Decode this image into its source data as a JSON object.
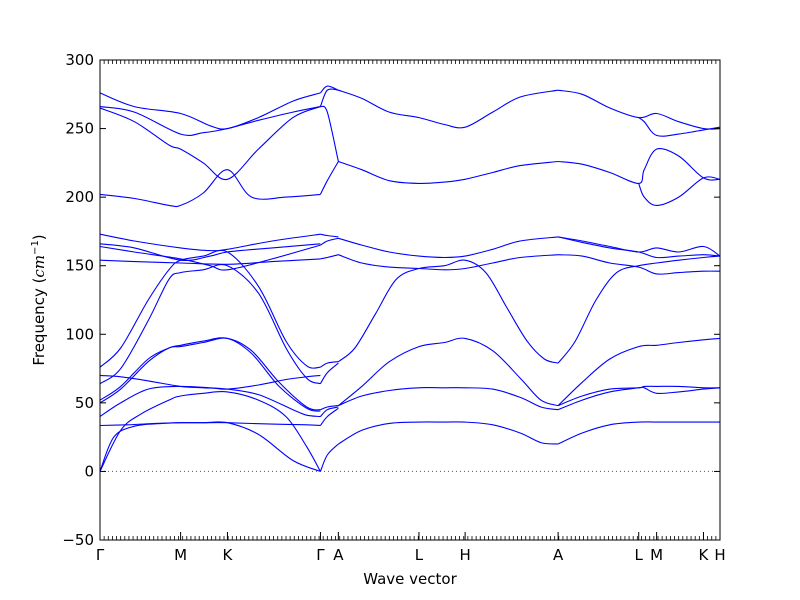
{
  "chart_data": {
    "type": "line",
    "title": "",
    "xlabel": "Wave vector",
    "ylabel_prefix": "Frequency (",
    "ylabel_unit": "cm",
    "ylabel_exp": "−1",
    "ylabel_suffix": ")",
    "ylim": [
      -50,
      300
    ],
    "yticks": [
      -50,
      0,
      50,
      100,
      150,
      200,
      250,
      300
    ],
    "xlim": [
      0,
      9.0
    ],
    "grid": false,
    "legend": "none",
    "line_color": "#0000ff",
    "zero_line_color": "#555555",
    "kpoints": [
      {
        "label": "Γ",
        "x": 0.0
      },
      {
        "label": "M",
        "x": 1.17
      },
      {
        "label": "K",
        "x": 1.85
      },
      {
        "label": "Γ",
        "x": 3.2
      },
      {
        "label": "A",
        "x": 3.46
      },
      {
        "label": "L",
        "x": 4.63
      },
      {
        "label": "H",
        "x": 5.3
      },
      {
        "label": "A",
        "x": 6.65
      },
      {
        "label": "L",
        "x": 7.82
      },
      {
        "label": "M",
        "x": 8.08
      },
      {
        "label": "K",
        "x": 8.76
      },
      {
        "label": "H",
        "x": 9.0
      }
    ],
    "series": [
      {
        "x": [
          0,
          0.2,
          0.5,
          0.9,
          1.17,
          1.5,
          1.85,
          2.5,
          3.0,
          3.2
        ],
        "y": [
          0,
          25,
          33,
          35,
          35.5,
          35.5,
          35.5,
          34.5,
          34,
          33.5
        ]
      },
      {
        "x": [
          0,
          0.3,
          0.6,
          1.0,
          1.17,
          1.5,
          1.85,
          2.3,
          2.7,
          3.0,
          3.2
        ],
        "y": [
          0,
          30,
          42,
          52,
          55,
          57,
          58,
          52,
          40,
          18,
          0
        ]
      },
      {
        "x": [
          0,
          0.4,
          0.8,
          1.17,
          1.5,
          1.85,
          2.3,
          2.8,
          3.2
        ],
        "y": [
          33.5,
          34,
          35,
          35.5,
          35.5,
          35.5,
          27,
          8,
          0
        ]
      },
      {
        "x": [
          0,
          0.3,
          0.7,
          1.17,
          1.6,
          1.85,
          2.3,
          2.7,
          3.0,
          3.2
        ],
        "y": [
          40,
          50,
          60,
          62,
          61,
          60,
          63,
          67,
          69,
          70
        ]
      },
      {
        "x": [
          0,
          0.3,
          0.7,
          1.17,
          1.5,
          1.85,
          2.3,
          2.8,
          3.0,
          3.2
        ],
        "y": [
          70,
          69,
          66,
          62,
          61,
          60,
          56,
          45,
          41,
          40
        ]
      },
      {
        "x": [
          0,
          0.3,
          0.7,
          1.0,
          1.17,
          1.5,
          1.85,
          2.2,
          2.6,
          3.0,
          3.2
        ],
        "y": [
          50,
          60,
          80,
          90,
          91,
          94,
          97,
          88,
          65,
          47,
          45
        ]
      },
      {
        "x": [
          0,
          0.3,
          0.7,
          1.0,
          1.17,
          1.5,
          1.85,
          2.2,
          2.6,
          3.0,
          3.2
        ],
        "y": [
          52,
          62,
          82,
          90,
          92,
          95,
          97,
          86,
          62,
          46,
          44
        ]
      },
      {
        "x": [
          0,
          0.3,
          0.7,
          1.0,
          1.17,
          1.5,
          1.85,
          2.3,
          2.7,
          3.0,
          3.2
        ],
        "y": [
          64,
          75,
          110,
          140,
          145,
          147,
          150,
          130,
          90,
          68,
          64
        ]
      },
      {
        "x": [
          0,
          0.3,
          0.7,
          1.0,
          1.17,
          1.5,
          1.85,
          2.3,
          2.7,
          3.0,
          3.2
        ],
        "y": [
          76,
          90,
          125,
          147,
          154,
          157,
          160,
          135,
          95,
          77,
          76
        ]
      },
      {
        "x": [
          0,
          0.5,
          1.17,
          1.85,
          2.5,
          3.2
        ],
        "y": [
          154,
          153,
          152,
          151,
          153,
          155
        ]
      },
      {
        "x": [
          0,
          0.5,
          1.17,
          1.6,
          1.85,
          2.5,
          3.2
        ],
        "y": [
          164,
          160,
          155,
          150,
          147,
          155,
          165
        ]
      },
      {
        "x": [
          0,
          0.5,
          1.17,
          1.6,
          1.85,
          2.5,
          3.2
        ],
        "y": [
          166,
          163,
          154,
          157,
          160,
          163,
          166
        ]
      },
      {
        "x": [
          0,
          0.5,
          1.17,
          1.6,
          1.85,
          2.5,
          3.2
        ],
        "y": [
          173,
          168,
          163,
          161,
          162,
          168,
          173
        ]
      },
      {
        "x": [
          0,
          0.5,
          1.0,
          1.17,
          1.5,
          1.85,
          2.2,
          2.7,
          3.2
        ],
        "y": [
          202,
          199,
          194,
          194,
          203,
          220,
          200,
          200,
          202
        ]
      },
      {
        "x": [
          0,
          0.5,
          1.0,
          1.17,
          1.5,
          1.85,
          2.3,
          2.8,
          3.2
        ],
        "y": [
          265,
          255,
          238,
          235,
          225,
          213,
          235,
          258,
          266
        ]
      },
      {
        "x": [
          0,
          0.5,
          1.17,
          1.5,
          1.85,
          2.3,
          2.8,
          3.2
        ],
        "y": [
          266,
          262,
          246,
          247,
          250,
          256,
          262,
          266
        ]
      },
      {
        "x": [
          0,
          0.5,
          1.17,
          1.6,
          1.85,
          2.3,
          2.8,
          3.2
        ],
        "y": [
          276,
          266,
          261,
          252,
          250,
          258,
          270,
          276
        ]
      },
      {
        "x": [
          3.2,
          3.3,
          3.46
        ],
        "y": [
          0,
          12,
          20
        ]
      },
      {
        "x": [
          3.2,
          3.3,
          3.46
        ],
        "y": [
          33.5,
          40,
          46
        ]
      },
      {
        "x": [
          3.2,
          3.3,
          3.46
        ],
        "y": [
          40,
          45,
          47
        ]
      },
      {
        "x": [
          3.2,
          3.3,
          3.46
        ],
        "y": [
          45,
          47,
          48
        ]
      },
      {
        "x": [
          3.2,
          3.3,
          3.46
        ],
        "y": [
          64,
          72,
          79
        ]
      },
      {
        "x": [
          3.2,
          3.3,
          3.46
        ],
        "y": [
          76,
          79,
          80
        ]
      },
      {
        "x": [
          3.2,
          3.3,
          3.46
        ],
        "y": [
          155,
          156,
          158
        ]
      },
      {
        "x": [
          3.2,
          3.3,
          3.46
        ],
        "y": [
          165,
          168,
          170
        ]
      },
      {
        "x": [
          3.2,
          3.3,
          3.46
        ],
        "y": [
          173,
          172,
          171
        ]
      },
      {
        "x": [
          3.2,
          3.3,
          3.46
        ],
        "y": [
          202,
          212,
          226
        ]
      },
      {
        "x": [
          3.2,
          3.3,
          3.46
        ],
        "y": [
          266,
          262,
          226
        ]
      },
      {
        "x": [
          3.2,
          3.3,
          3.46
        ],
        "y": [
          266,
          278,
          278
        ]
      },
      {
        "x": [
          3.2,
          3.3,
          3.46
        ],
        "y": [
          276,
          281,
          278
        ]
      },
      {
        "x": [
          3.46,
          3.8,
          4.2,
          4.63,
          5.0,
          5.3,
          5.7,
          6.1,
          6.4,
          6.65
        ],
        "y": [
          20,
          30,
          35,
          36,
          36,
          36,
          34,
          28,
          21,
          20
        ]
      },
      {
        "x": [
          3.46,
          3.8,
          4.2,
          4.63,
          5.0,
          5.3,
          5.7,
          6.1,
          6.4,
          6.65
        ],
        "y": [
          48,
          55,
          59,
          61,
          61,
          61,
          60,
          54,
          47,
          45
        ]
      },
      {
        "x": [
          3.46,
          3.8,
          4.2,
          4.63,
          5.0,
          5.3,
          5.7,
          6.1,
          6.4,
          6.65
        ],
        "y": [
          48,
          62,
          80,
          91,
          94,
          97,
          88,
          68,
          52,
          48
        ]
      },
      {
        "x": [
          3.46,
          3.7,
          4.0,
          4.3,
          4.63,
          5.0,
          5.3,
          5.6,
          5.9,
          6.2,
          6.45,
          6.65
        ],
        "y": [
          80,
          90,
          115,
          140,
          148,
          150,
          154,
          145,
          120,
          95,
          82,
          79
        ]
      },
      {
        "x": [
          3.46,
          3.8,
          4.2,
          4.63,
          5.0,
          5.3,
          5.7,
          6.1,
          6.65
        ],
        "y": [
          158,
          152,
          149,
          148,
          147,
          148,
          152,
          156,
          158
        ]
      },
      {
        "x": [
          3.46,
          3.8,
          4.2,
          4.63,
          5.0,
          5.3,
          5.7,
          6.1,
          6.65
        ],
        "y": [
          170,
          165,
          160,
          157,
          156,
          157,
          162,
          168,
          171
        ]
      },
      {
        "x": [
          3.46,
          3.8,
          4.2,
          4.63,
          5.0,
          5.3,
          5.7,
          6.1,
          6.65
        ],
        "y": [
          226,
          220,
          212,
          210,
          211,
          213,
          218,
          223,
          226
        ]
      },
      {
        "x": [
          3.46,
          3.8,
          4.2,
          4.63,
          5.0,
          5.3,
          5.7,
          6.1,
          6.65
        ],
        "y": [
          278,
          272,
          262,
          258,
          253,
          251,
          262,
          273,
          278
        ]
      },
      {
        "x": [
          6.65,
          7.0,
          7.4,
          7.82,
          8.08,
          8.4,
          8.76,
          9.0
        ],
        "y": [
          20,
          28,
          34,
          36,
          36,
          36,
          36,
          36
        ]
      },
      {
        "x": [
          6.65,
          7.0,
          7.4,
          7.82,
          7.9,
          8.08,
          8.4,
          8.76,
          9.0
        ],
        "y": [
          45,
          52,
          58,
          61,
          61,
          57,
          58,
          60,
          61
        ]
      },
      {
        "x": [
          6.65,
          7.0,
          7.4,
          7.82,
          7.9,
          8.08,
          8.4,
          8.76,
          9.0
        ],
        "y": [
          48,
          55,
          60,
          61,
          62,
          62,
          62,
          61,
          61
        ]
      },
      {
        "x": [
          6.65,
          7.0,
          7.4,
          7.82,
          8.08,
          8.4,
          8.76,
          9.0
        ],
        "y": [
          48,
          65,
          82,
          91,
          92,
          94,
          96,
          97
        ]
      },
      {
        "x": [
          6.65,
          6.9,
          7.2,
          7.5,
          7.82,
          8.08,
          8.4,
          8.76,
          9.0
        ],
        "y": [
          79,
          95,
          125,
          145,
          150,
          152,
          154,
          156,
          157
        ]
      },
      {
        "x": [
          6.65,
          7.0,
          7.4,
          7.82,
          8.08,
          8.4,
          8.76,
          9.0
        ],
        "y": [
          158,
          157,
          152,
          149,
          144,
          145,
          146,
          146
        ]
      },
      {
        "x": [
          6.65,
          7.0,
          7.4,
          7.82,
          8.08,
          8.4,
          8.76,
          9.0
        ],
        "y": [
          171,
          167,
          163,
          160,
          156,
          157,
          158,
          157
        ]
      },
      {
        "x": [
          6.65,
          7.0,
          7.4,
          7.82,
          8.08,
          8.4,
          8.76,
          9.0
        ],
        "y": [
          171,
          168,
          164,
          160,
          163,
          160,
          164,
          157
        ]
      },
      {
        "x": [
          6.65,
          7.0,
          7.4,
          7.82,
          7.9,
          8.08,
          8.4,
          8.76,
          9.0
        ],
        "y": [
          226,
          224,
          218,
          210,
          220,
          235,
          230,
          214,
          213
        ]
      },
      {
        "x": [
          7.82,
          7.9,
          8.08,
          8.4,
          8.76,
          9.0
        ],
        "y": [
          210,
          200,
          194,
          200,
          214,
          213
        ]
      },
      {
        "x": [
          6.65,
          7.0,
          7.4,
          7.82,
          8.08,
          8.4,
          8.76,
          9.0
        ],
        "y": [
          278,
          275,
          265,
          258,
          261,
          255,
          250,
          250
        ]
      },
      {
        "x": [
          7.82,
          7.9,
          8.08,
          8.4,
          8.76,
          9.0
        ],
        "y": [
          258,
          255,
          245,
          246,
          249,
          251
        ]
      }
    ]
  }
}
